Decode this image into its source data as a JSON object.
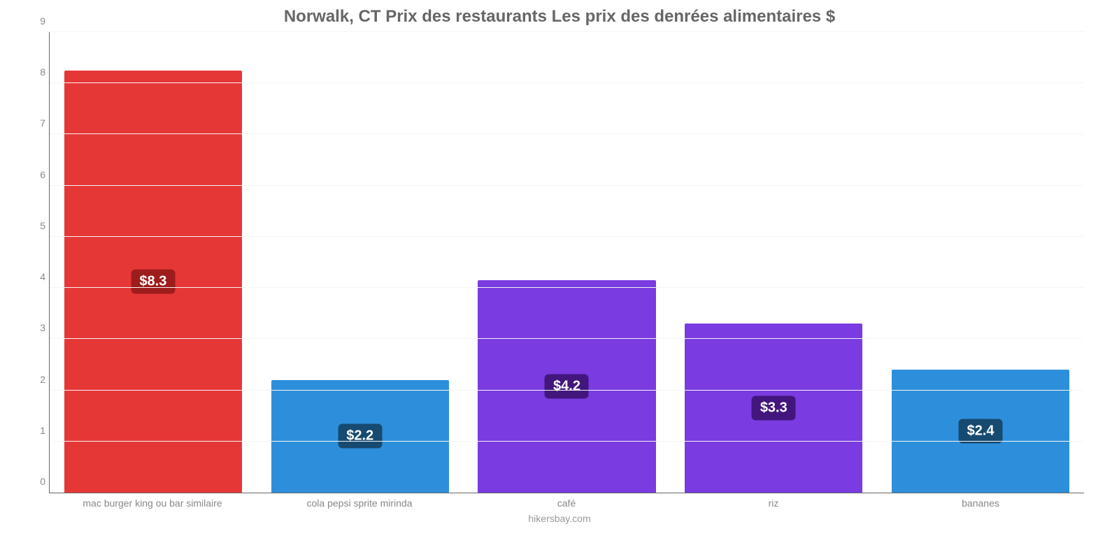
{
  "chart": {
    "type": "bar",
    "title": "Norwalk, CT Prix des restaurants Les prix des denrées alimentaires $",
    "title_color": "#666666",
    "title_fontsize": 24,
    "source": "hikersbay.com",
    "source_color": "#999999",
    "source_fontsize": 14,
    "background_color": "#ffffff",
    "axis_color": "#666666",
    "grid_color": "#f5f5f5",
    "tick_label_color": "#888888",
    "tick_fontsize": 14,
    "xlabel_fontsize": 14,
    "ylim_min": 0,
    "ylim_max": 9,
    "ytick_step": 1,
    "yticks": [
      0,
      1,
      2,
      3,
      4,
      5,
      6,
      7,
      8,
      9
    ],
    "bar_width_ratio": 0.86,
    "badge_text_color": "#ffffff",
    "badge_fontsize": 20,
    "categories": [
      "mac burger king ou bar similaire",
      "cola pepsi sprite mirinda",
      "café",
      "riz",
      "bananes"
    ],
    "values": [
      8.25,
      2.2,
      4.15,
      3.3,
      2.4
    ],
    "value_labels": [
      "$8.3",
      "$2.2",
      "$4.2",
      "$3.3",
      "$2.4"
    ],
    "bar_colors": [
      "#e63737",
      "#2d8fdb",
      "#7a3be0",
      "#7a3be0",
      "#2d8fdb"
    ],
    "badge_colors": [
      "#9e1c1c",
      "#174a70",
      "#42167c",
      "#42167c",
      "#174a70"
    ]
  }
}
